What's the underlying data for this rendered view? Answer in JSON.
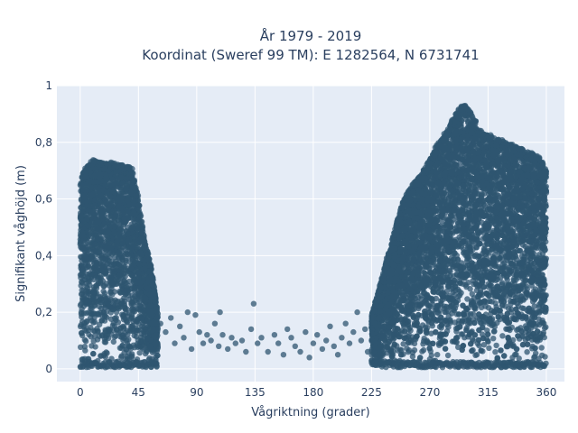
{
  "chart_data": {
    "type": "scatter",
    "title": "År 1979 - 2019",
    "subtitle": "Koordinat (Sweref 99 TM): E 1282564, N 6731741",
    "xlabel": "Vågriktning (grader)",
    "ylabel": "Signifikant våghöjd (m)",
    "xlim": [
      -18,
      374
    ],
    "ylim": [
      -0.045,
      1.0
    ],
    "x_ticks": [
      0,
      45,
      90,
      135,
      180,
      225,
      270,
      315,
      360
    ],
    "x_tick_labels": [
      "0",
      "45",
      "90",
      "135",
      "180",
      "225",
      "270",
      "315",
      "360"
    ],
    "y_ticks": [
      0,
      0.2,
      0.4,
      0.6,
      0.8,
      1
    ],
    "y_tick_labels": [
      "0",
      "0,2",
      "0,4",
      "0,6",
      "0,8",
      "1"
    ],
    "grid": true,
    "colors": {
      "background": "#e5ecf6",
      "grid": "#ffffff",
      "marker": "#2f5570"
    },
    "point_density": "very dense (tens of thousands of points); summarized by upper envelope",
    "envelope_sector_0_60": {
      "x": [
        0,
        5,
        10,
        15,
        20,
        25,
        30,
        35,
        40,
        45,
        50,
        55,
        60
      ],
      "max_y": [
        0.67,
        0.72,
        0.74,
        0.73,
        0.73,
        0.73,
        0.72,
        0.72,
        0.71,
        0.6,
        0.45,
        0.36,
        0.2
      ]
    },
    "envelope_sector_225_360": {
      "x": [
        225,
        230,
        235,
        240,
        245,
        250,
        255,
        260,
        265,
        270,
        275,
        280,
        285,
        290,
        295,
        300,
        305,
        310,
        315,
        320,
        325,
        330,
        335,
        340,
        345,
        350,
        355,
        360
      ],
      "max_y": [
        0.19,
        0.27,
        0.36,
        0.44,
        0.53,
        0.6,
        0.64,
        0.67,
        0.7,
        0.74,
        0.79,
        0.82,
        0.86,
        0.9,
        0.94,
        0.92,
        0.88,
        0.84,
        0.83,
        0.82,
        0.81,
        0.8,
        0.79,
        0.78,
        0.77,
        0.76,
        0.75,
        0.7
      ]
    },
    "sparse_points_sector_60_225": [
      [
        62,
        0.16
      ],
      [
        66,
        0.13
      ],
      [
        70,
        0.18
      ],
      [
        73,
        0.09
      ],
      [
        77,
        0.15
      ],
      [
        80,
        0.11
      ],
      [
        83,
        0.2
      ],
      [
        86,
        0.07
      ],
      [
        89,
        0.19
      ],
      [
        92,
        0.13
      ],
      [
        95,
        0.09
      ],
      [
        98,
        0.12
      ],
      [
        101,
        0.1
      ],
      [
        104,
        0.16
      ],
      [
        107,
        0.08
      ],
      [
        108,
        0.2
      ],
      [
        110,
        0.12
      ],
      [
        114,
        0.07
      ],
      [
        117,
        0.11
      ],
      [
        120,
        0.09
      ],
      [
        125,
        0.1
      ],
      [
        128,
        0.06
      ],
      [
        132,
        0.14
      ],
      [
        134,
        0.23
      ],
      [
        137,
        0.09
      ],
      [
        140,
        0.11
      ],
      [
        145,
        0.06
      ],
      [
        150,
        0.12
      ],
      [
        153,
        0.09
      ],
      [
        157,
        0.05
      ],
      [
        160,
        0.14
      ],
      [
        163,
        0.11
      ],
      [
        166,
        0.08
      ],
      [
        170,
        0.06
      ],
      [
        174,
        0.13
      ],
      [
        177,
        0.04
      ],
      [
        180,
        0.09
      ],
      [
        183,
        0.12
      ],
      [
        187,
        0.07
      ],
      [
        190,
        0.1
      ],
      [
        193,
        0.15
      ],
      [
        196,
        0.08
      ],
      [
        199,
        0.05
      ],
      [
        202,
        0.11
      ],
      [
        205,
        0.16
      ],
      [
        208,
        0.09
      ],
      [
        211,
        0.13
      ],
      [
        214,
        0.2
      ],
      [
        217,
        0.1
      ],
      [
        220,
        0.14
      ],
      [
        222,
        0.06
      ]
    ]
  }
}
